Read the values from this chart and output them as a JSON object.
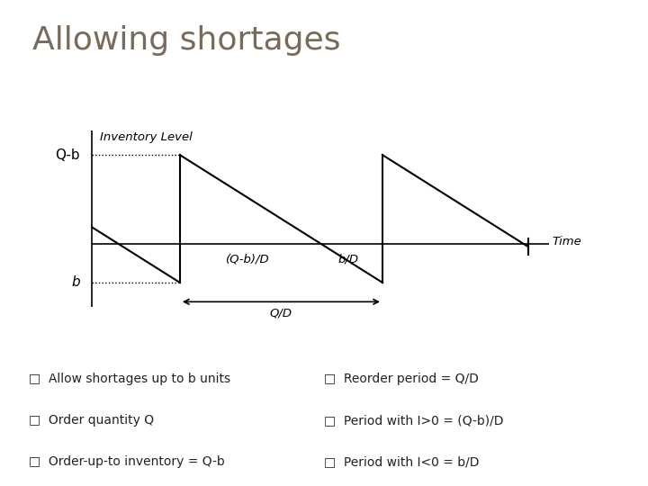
{
  "title": "Allowing shortages",
  "title_color": "#7a6a5a",
  "title_fontsize": 26,
  "bg_color": "#ffffff",
  "header_bar_color": "#8aafc0",
  "header_accent_color": "#c8622a",
  "inventory_label": "Inventory Level",
  "time_label": "Time",
  "ylabel_Qb": "Q-b",
  "ylabel_b": "b",
  "xlabel_Qb_D": "(Q-b)/D",
  "xlabel_b_D": "b/D",
  "xlabel_QD": "Q/D",
  "bullet_left": [
    "Allow shortages up to b units",
    "Order quantity Q",
    "Order-up-to inventory = Q-b"
  ],
  "bullet_right": [
    "Reorder period = Q/D",
    "Period with I>0 = (Q-b)/D",
    "Period with I<0 = b/D"
  ],
  "line_color": "#000000",
  "Qb": 0.65,
  "b": 0.28,
  "Qb_D": 2.0,
  "b_D": 1.0
}
